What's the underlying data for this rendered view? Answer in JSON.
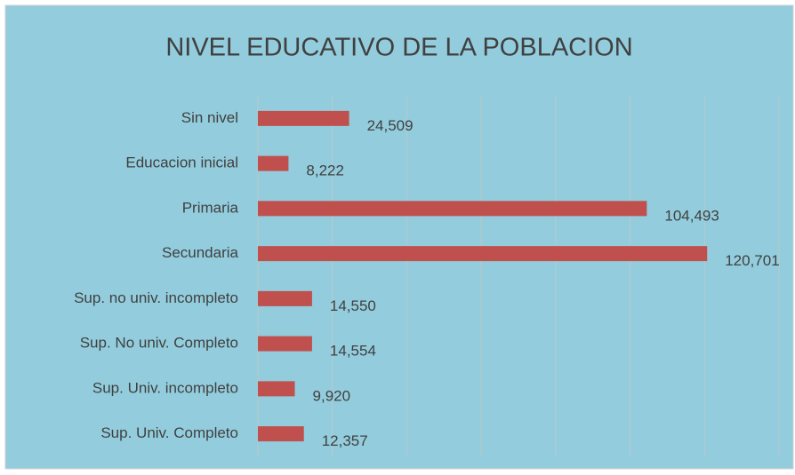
{
  "chart_data": {
    "type": "bar",
    "orientation": "horizontal",
    "title": "NIVEL EDUCATIVO DE LA POBLACION",
    "categories": [
      "Sin nivel",
      "Educacion inicial",
      "Primaria",
      "Secundaria",
      "Sup. no univ. incompleto",
      "Sup. No univ. Completo",
      "Sup. Univ. incompleto",
      "Sup. Univ. Completo"
    ],
    "values": [
      24509,
      8222,
      104493,
      120701,
      14550,
      14554,
      9920,
      12357
    ],
    "value_labels": [
      "24,509",
      "8,222",
      "104,493",
      "120,701",
      "14,550",
      "14,554",
      "9,920",
      "12,357"
    ],
    "color": "#c0504d",
    "xlim": [
      0,
      140000
    ],
    "xticks": [
      0,
      20000,
      40000,
      60000,
      80000,
      100000,
      120000,
      140000
    ],
    "grid": true
  }
}
